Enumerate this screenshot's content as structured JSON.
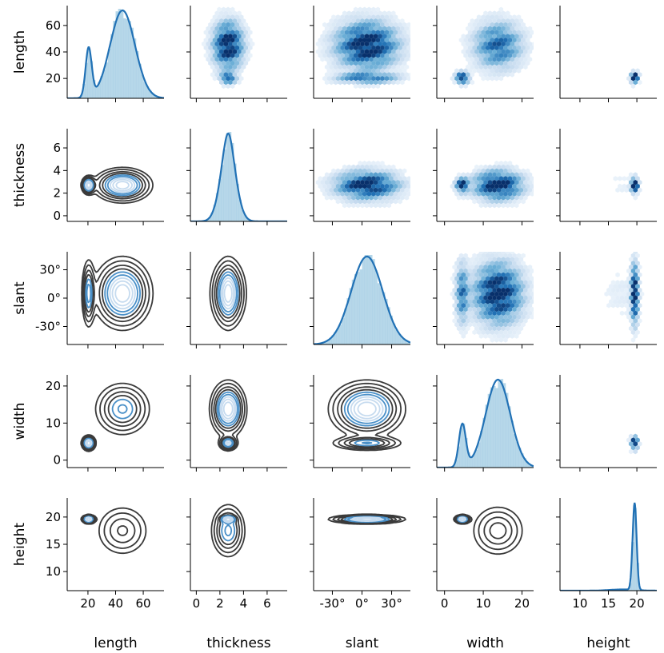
{
  "chart_data": {
    "type": "pairgrid",
    "title": "",
    "variables": [
      {
        "key": "length",
        "label": "length",
        "range": [
          5,
          75
        ],
        "ticks": [
          20,
          40,
          60
        ],
        "tick_labels": [
          "20",
          "40",
          "60"
        ]
      },
      {
        "key": "thickness",
        "label": "thickness",
        "range": [
          -0.5,
          7.7
        ],
        "ticks": [
          0,
          2,
          4,
          6
        ],
        "tick_labels": [
          "0",
          "2",
          "4",
          "6"
        ]
      },
      {
        "key": "slant",
        "label": "slant",
        "range": [
          -49,
          49
        ],
        "ticks": [
          -30,
          0,
          30
        ],
        "tick_labels": [
          "-30°",
          "0°",
          "30°"
        ]
      },
      {
        "key": "width",
        "label": "width",
        "range": [
          -2,
          23
        ],
        "ticks": [
          0,
          10,
          20
        ],
        "tick_labels": [
          "0",
          "10",
          "20"
        ]
      },
      {
        "key": "height",
        "label": "height",
        "range": [
          6.5,
          23.5
        ],
        "ticks": [
          10,
          15,
          20
        ],
        "tick_labels": [
          "10",
          "15",
          "20"
        ]
      }
    ],
    "diagonal": "histogram with KDE curve",
    "upper_triangle": "hexbin density",
    "lower_triangle": "KDE contours",
    "colors": {
      "main": "#2171b5",
      "hist": "#9ecae1",
      "contour_dark": "#3a3a3a",
      "contour_light": "#c6dbef"
    },
    "clusters": {
      "length": [
        {
          "w": 0.12,
          "m": 20.5,
          "s": 2.2
        },
        {
          "w": 0.88,
          "m": 45,
          "s": 9
        }
      ],
      "thickness": [
        {
          "w": 0.1,
          "m": 2.7,
          "s": 0.35
        },
        {
          "w": 0.9,
          "m": 2.7,
          "s": 0.65
        }
      ],
      "slant": [
        {
          "w": 1.0,
          "m": 5,
          "s": 16
        }
      ],
      "width": [
        {
          "w": 0.12,
          "m": 4.6,
          "s": 0.9
        },
        {
          "w": 0.88,
          "m": 13.8,
          "s": 3.2
        }
      ],
      "height": [
        {
          "w": 0.92,
          "m": 19.6,
          "s": 0.35
        },
        {
          "w": 0.08,
          "m": 17.5,
          "s": 2.2
        }
      ]
    }
  }
}
